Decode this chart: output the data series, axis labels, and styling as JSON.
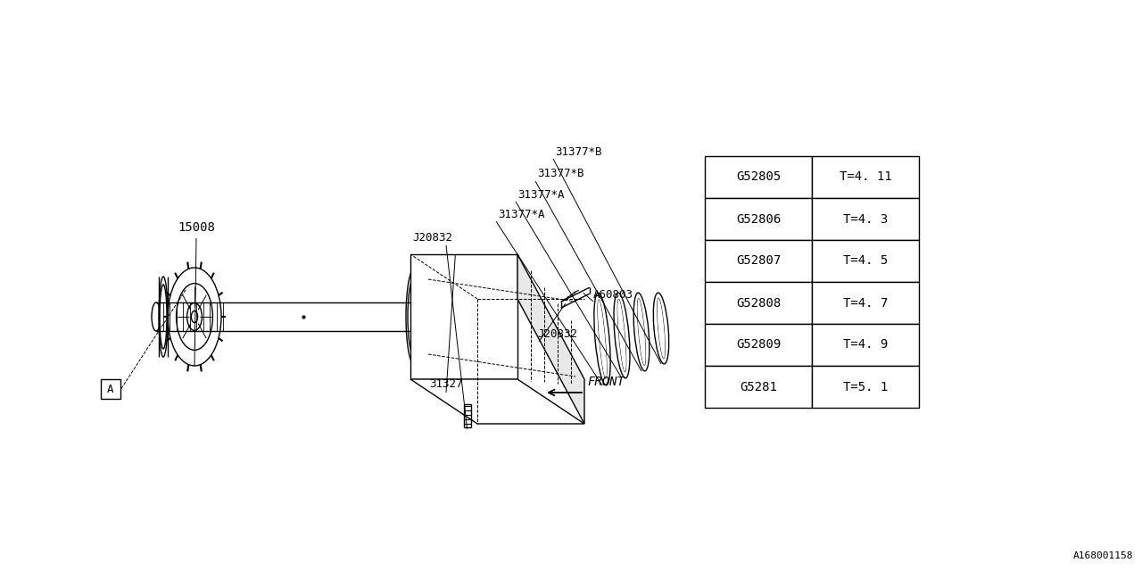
{
  "bg_color": "#ffffff",
  "line_color": "#000000",
  "table_data": [
    [
      "G52805",
      "T=4. 11"
    ],
    [
      "G52806",
      "T=4. 3"
    ],
    [
      "G52807",
      "T=4. 5"
    ],
    [
      "G52808",
      "T=4. 7"
    ],
    [
      "G52809",
      "T=4. 9"
    ],
    [
      "G5281",
      "T=5. 1"
    ]
  ],
  "diagram_id": "A168001158",
  "front_label": "FRONT"
}
